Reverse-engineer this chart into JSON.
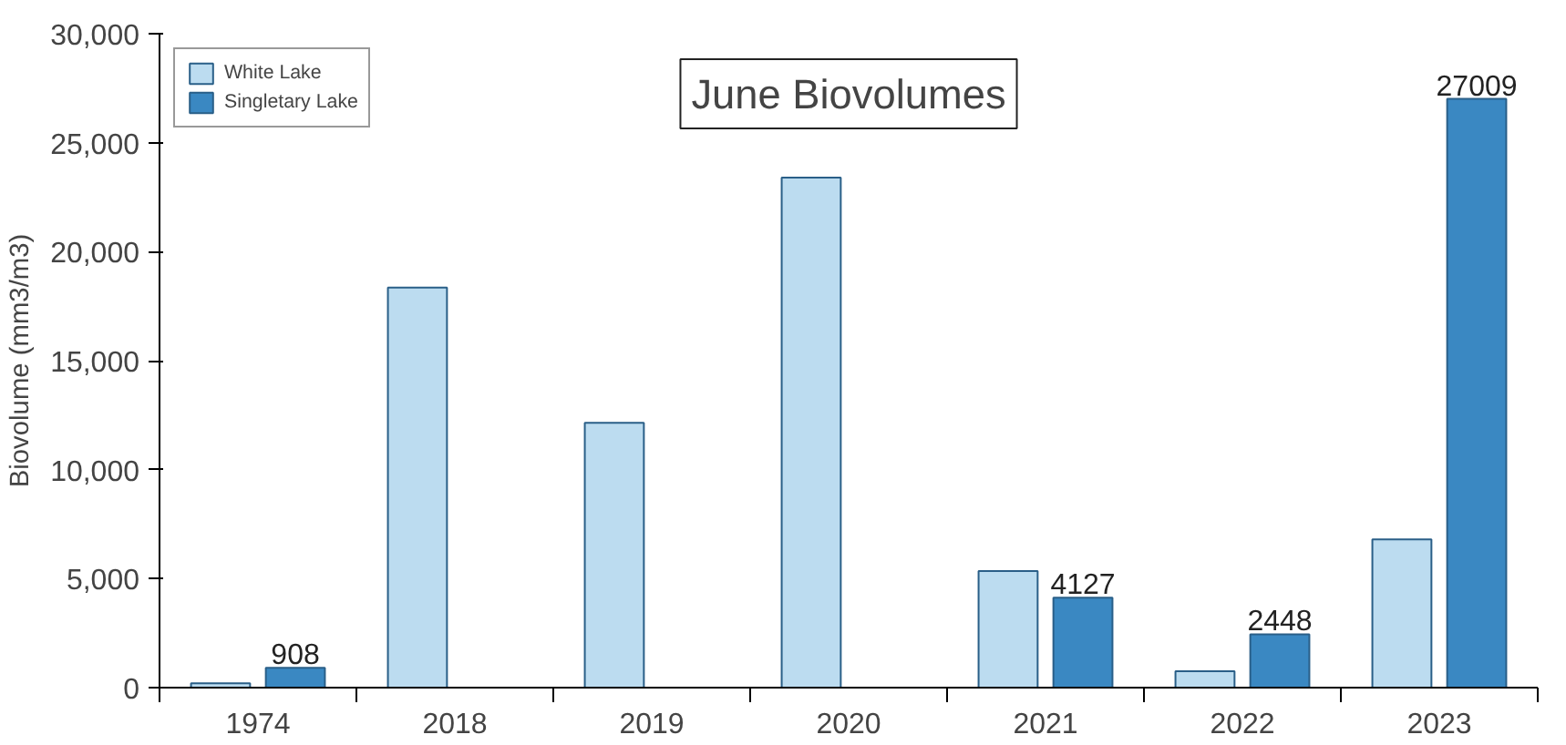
{
  "chart_data": {
    "type": "bar",
    "title": "June Biovolumes",
    "ylabel": "Biovolume (mm3/m3)",
    "categories": [
      "1974",
      "2018",
      "2019",
      "2020",
      "2021",
      "2022",
      "2023"
    ],
    "series": [
      {
        "name": "White Lake",
        "color": "#bcdcf0",
        "values": [
          200,
          18350,
          12150,
          23400,
          5350,
          750,
          6800
        ]
      },
      {
        "name": "Singletary Lake",
        "color": "#3a88c2",
        "values": [
          908,
          null,
          null,
          null,
          4127,
          2448,
          27009
        ],
        "value_labels": [
          "908",
          null,
          null,
          null,
          "4127",
          "2448",
          "27009"
        ]
      }
    ],
    "ylim": [
      0,
      30000
    ],
    "yticks": [
      {
        "value": 0,
        "label": "0"
      },
      {
        "value": 5000,
        "label": "5,000"
      },
      {
        "value": 10000,
        "label": "10,000"
      },
      {
        "value": 15000,
        "label": "15,000"
      },
      {
        "value": 20000,
        "label": "20,000"
      },
      {
        "value": 25000,
        "label": "25,000"
      },
      {
        "value": 30000,
        "label": "30,000"
      }
    ],
    "grid": false,
    "legend": "top left"
  }
}
